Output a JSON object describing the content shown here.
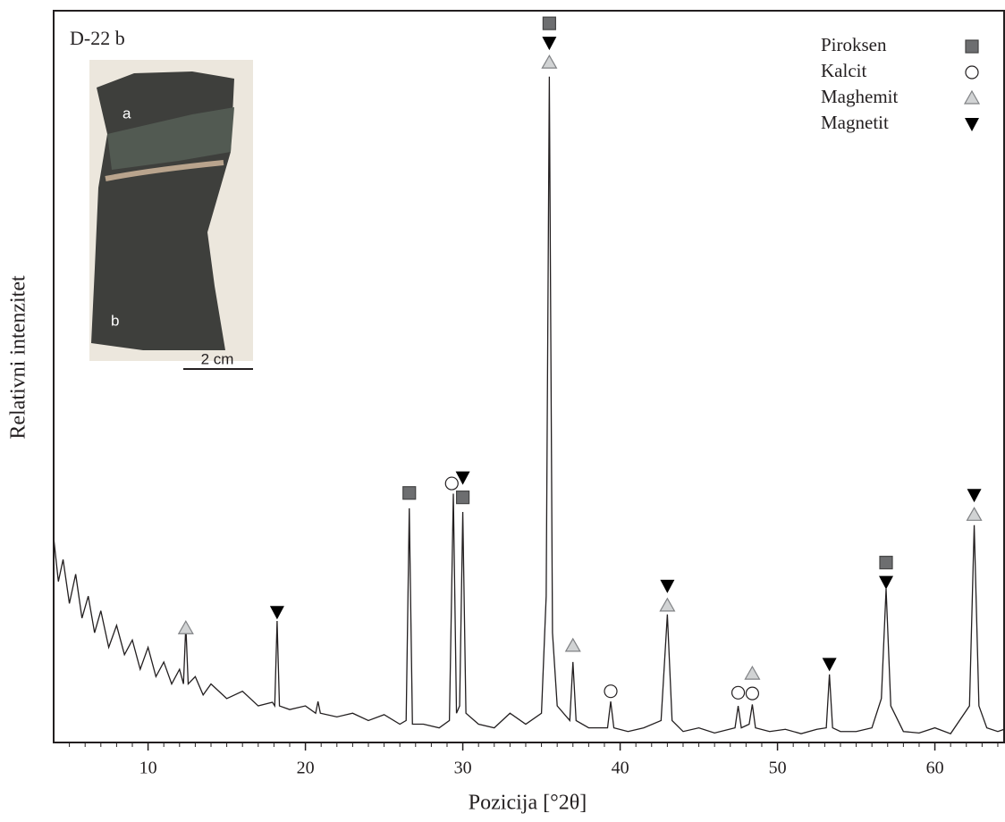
{
  "chart_data": {
    "type": "line",
    "title": "D-22 b",
    "x_label": "Pozicija [°2θ]",
    "y_label": "Relativni intenzitet",
    "xlim": [
      4,
      64.4
    ],
    "ylim": [
      0,
      100
    ],
    "xticks": [
      10,
      20,
      30,
      40,
      50,
      60
    ],
    "xminorticks": [
      5,
      6,
      7,
      8,
      9,
      11,
      12,
      13,
      14,
      15,
      16,
      17,
      18,
      19,
      21,
      22,
      23,
      24,
      25,
      26,
      27,
      28,
      29,
      31,
      32,
      33,
      34,
      35,
      36,
      37,
      38,
      39,
      41,
      42,
      43,
      44,
      45,
      46,
      47,
      48,
      49,
      51,
      52,
      53,
      54,
      55,
      56,
      57,
      58,
      59,
      61,
      62,
      63,
      64
    ],
    "series": [
      {
        "color": "#231f20",
        "x": [
          4,
          4.3,
          4.6,
          5,
          5.4,
          5.8,
          6.2,
          6.6,
          7,
          7.5,
          8,
          8.5,
          9,
          9.5,
          10,
          10.5,
          11,
          11.5,
          12,
          12.25,
          12.4,
          12.55,
          13,
          13.5,
          14,
          15,
          16,
          17,
          17.9,
          18.05,
          18.2,
          18.35,
          19,
          20,
          20.65,
          20.8,
          20.95,
          22,
          23,
          24,
          25,
          26,
          26.4,
          26.6,
          26.8,
          27.5,
          28.5,
          29.15,
          29.4,
          29.6,
          29.8,
          30.0,
          30.2,
          31,
          32,
          33,
          34,
          35,
          35.3,
          35.5,
          35.7,
          36,
          36.8,
          37,
          37.2,
          38,
          39.2,
          39.4,
          39.6,
          40.5,
          41.5,
          42.6,
          43.0,
          43.3,
          44,
          45,
          46,
          47.3,
          47.5,
          47.7,
          48.2,
          48.4,
          48.6,
          49.5,
          50.5,
          51.5,
          52.5,
          53.1,
          53.3,
          53.5,
          54,
          55,
          56,
          56.6,
          56.9,
          57.2,
          58,
          59,
          60,
          61,
          62.2,
          62.5,
          62.8,
          63.3,
          64,
          64.4
        ],
        "values": [
          28,
          22,
          25,
          19,
          23,
          17,
          20,
          15,
          18,
          13,
          16,
          12,
          14,
          10,
          13,
          9,
          11,
          8,
          10,
          8,
          16,
          8,
          9,
          6.5,
          8,
          6,
          7,
          5,
          5.5,
          5,
          16.6,
          5,
          4.5,
          5,
          4,
          5.6,
          4,
          3.5,
          4,
          3,
          3.8,
          2.5,
          3,
          32,
          2.5,
          2.5,
          2,
          3,
          34,
          4,
          5,
          31.5,
          4,
          2.5,
          2,
          4,
          2.5,
          4,
          20,
          91,
          15,
          5,
          3,
          11,
          3,
          2,
          2,
          5.6,
          2,
          1.5,
          2,
          3,
          17.5,
          3,
          1.5,
          2,
          1.3,
          2,
          5,
          2,
          2.5,
          5.2,
          2,
          1.5,
          1.8,
          1.2,
          1.8,
          2,
          9.3,
          2,
          1.5,
          1.5,
          2,
          6,
          21,
          5,
          1.5,
          1.3,
          2,
          1.2,
          5,
          29.7,
          5,
          2,
          1.5,
          1.8
        ]
      }
    ],
    "phases": [
      {
        "name": "Piroksen",
        "symbol": "square",
        "color": "#6d6e70"
      },
      {
        "name": "Kalcit",
        "symbol": "circle",
        "color": "#ffffff"
      },
      {
        "name": "Maghemit",
        "symbol": "triangle",
        "color": "#d1d3d4"
      },
      {
        "name": "Magnetit",
        "symbol": "triangle-down",
        "color": "#000000"
      }
    ],
    "annotations": [
      {
        "x": 12.4,
        "y": 15.6,
        "phases": [
          2
        ]
      },
      {
        "x": 18.2,
        "y": 17.8,
        "phases": [
          3
        ]
      },
      {
        "x": 26.6,
        "y": 34.1,
        "phases": [
          0
        ]
      },
      {
        "x": 29.3,
        "y": 35.4,
        "phases": [
          1
        ]
      },
      {
        "x": 30.0,
        "y": 33.5,
        "phases": [
          0,
          3
        ]
      },
      {
        "x": 35.5,
        "y": 92.9,
        "phases": [
          2,
          3,
          0
        ]
      },
      {
        "x": 37.0,
        "y": 13.2,
        "phases": [
          2
        ]
      },
      {
        "x": 39.4,
        "y": 7.0,
        "phases": [
          1
        ]
      },
      {
        "x": 43.0,
        "y": 18.7,
        "phases": [
          2,
          3
        ]
      },
      {
        "x": 47.5,
        "y": 6.8,
        "phases": [
          1
        ]
      },
      {
        "x": 48.4,
        "y": 6.7,
        "phases": [
          1,
          2
        ]
      },
      {
        "x": 53.3,
        "y": 10.7,
        "phases": [
          3
        ]
      },
      {
        "x": 56.9,
        "y": 21.9,
        "phases": [
          3,
          0
        ]
      },
      {
        "x": 62.5,
        "y": 31.1,
        "phases": [
          2,
          3
        ]
      }
    ],
    "inset": {
      "labels": [
        "a",
        "b"
      ],
      "scale": "2 cm"
    }
  }
}
